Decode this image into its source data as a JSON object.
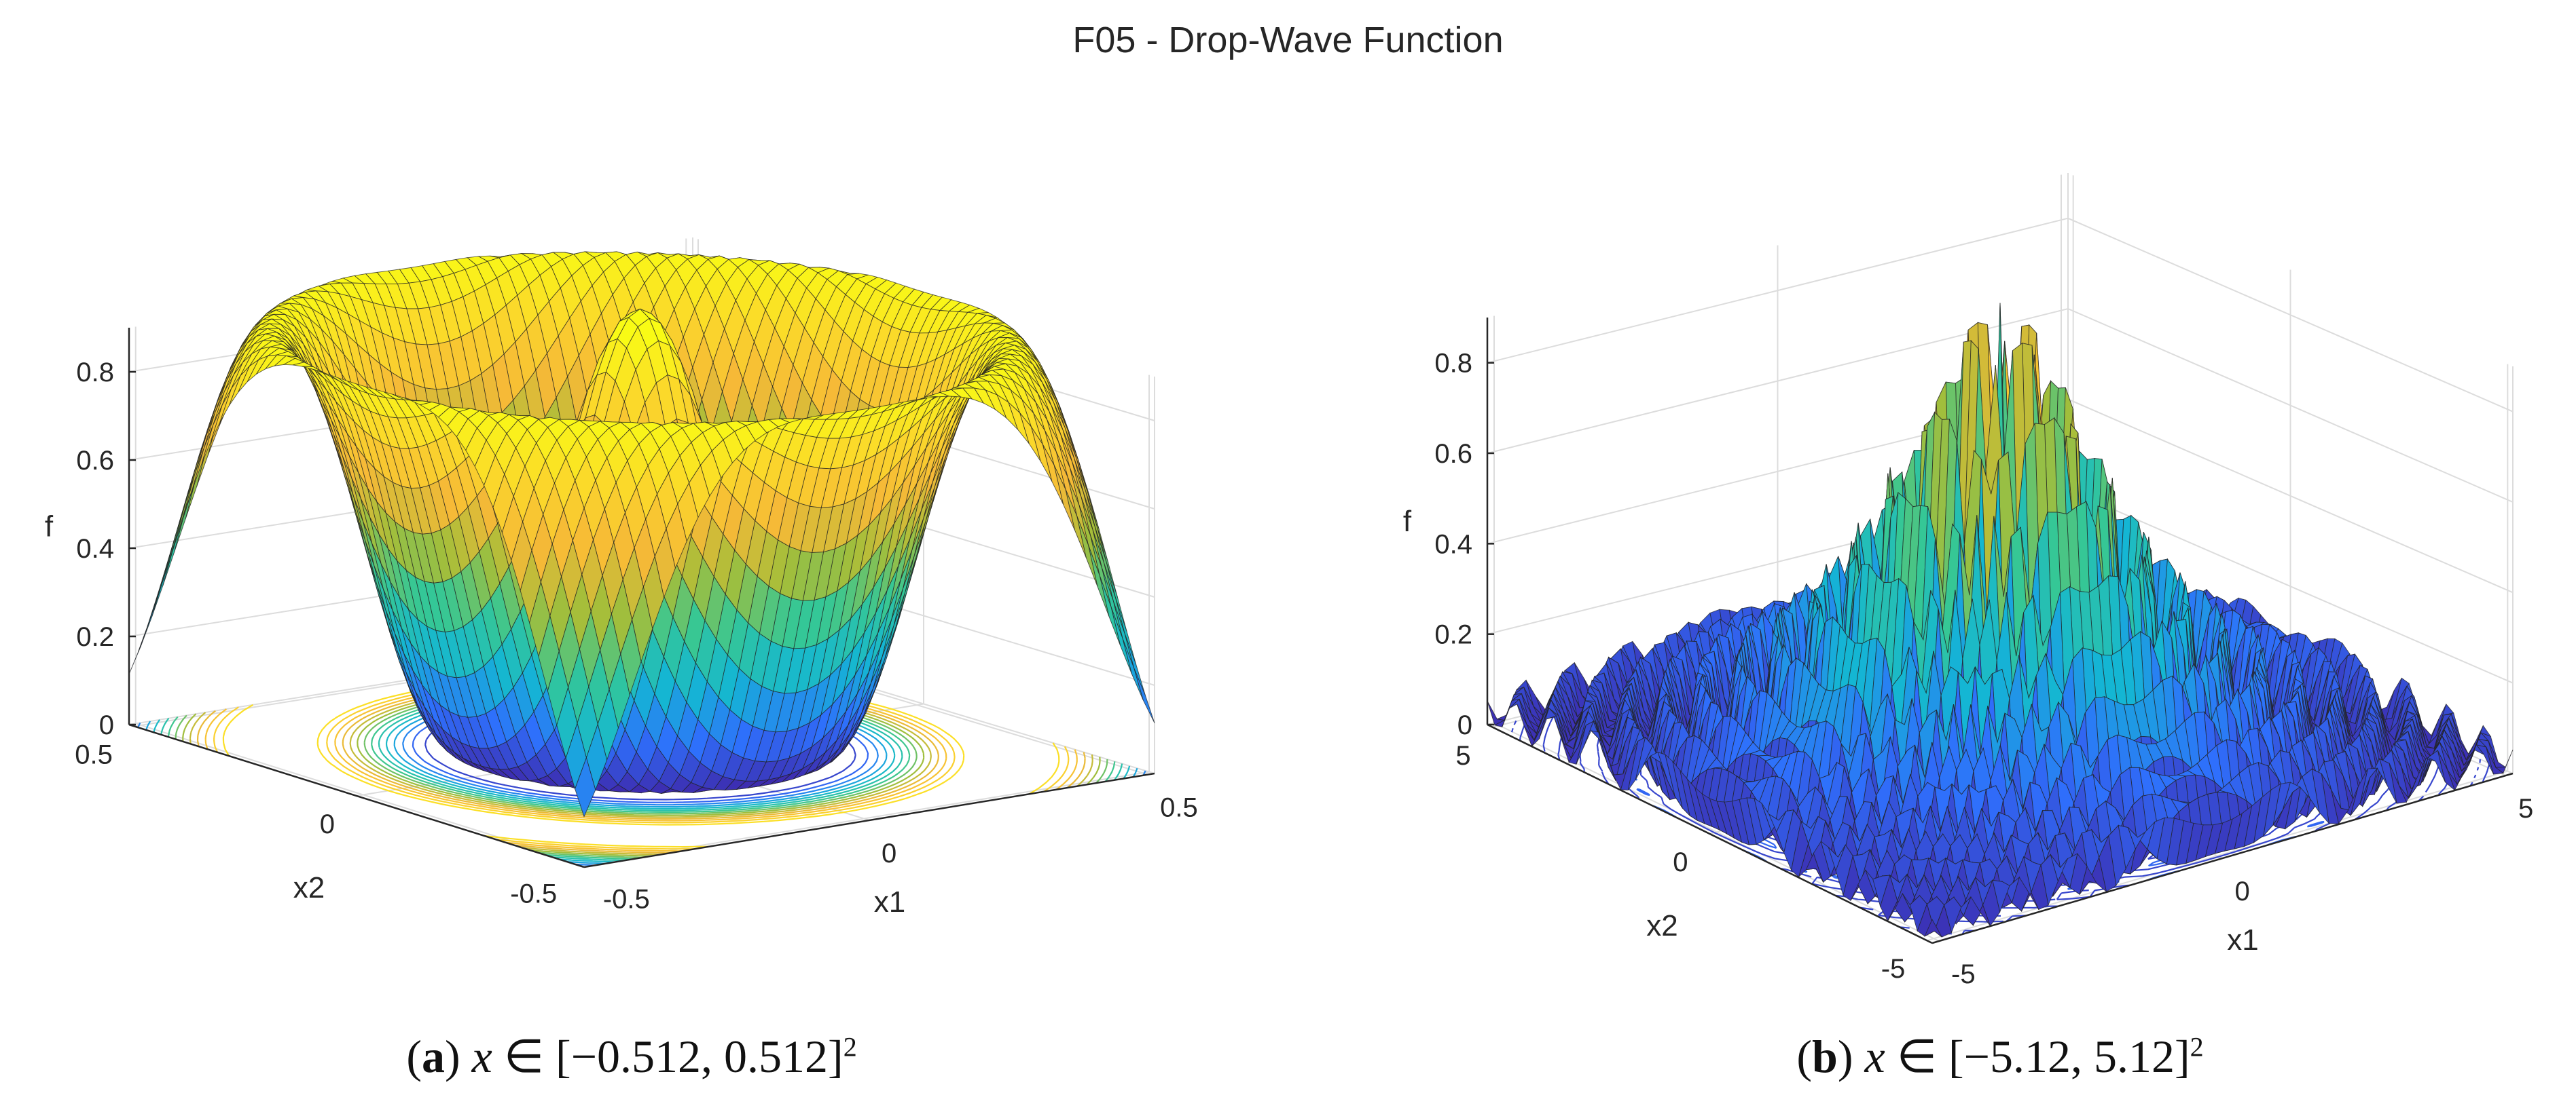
{
  "figure_title": "F05 - Drop-Wave Function",
  "chart_data": [
    {
      "type": "surface",
      "panel_label": "a",
      "caption_rest": "[−0.512, 0.512]",
      "caption_var": "x",
      "caption_sup": "2",
      "function": "drop-wave",
      "xlabel": "x1",
      "ylabel": "x2",
      "zlabel": "f",
      "xlim": [
        -0.512,
        0.512
      ],
      "ylim": [
        -0.512,
        0.512
      ],
      "zlim": [
        0,
        0.9
      ],
      "x_ticks": [
        "-0.5",
        "0",
        "0.5"
      ],
      "y_ticks": [
        "-0.5",
        "0",
        "0.5"
      ],
      "z_ticks": [
        "0",
        "0.2",
        "0.4",
        "0.6",
        "0.8"
      ],
      "colormap": [
        "#3e26a8",
        "#2f6ffc",
        "#14b6d4",
        "#35c796",
        "#a4be3a",
        "#f6b937",
        "#fbd92a",
        "#f9fb15"
      ],
      "contour_projection": true,
      "grid": true
    },
    {
      "type": "surface",
      "panel_label": "b",
      "caption_rest": "[−5.12, 5.12]",
      "caption_var": "x",
      "caption_sup": "2",
      "function": "drop-wave",
      "xlabel": "x1",
      "ylabel": "x2",
      "zlabel": "f",
      "xlim": [
        -5.12,
        5.12
      ],
      "ylim": [
        -5.12,
        5.12
      ],
      "zlim": [
        0,
        0.9
      ],
      "x_ticks": [
        "-5",
        "0",
        "5"
      ],
      "y_ticks": [
        "-5",
        "0",
        "5"
      ],
      "z_ticks": [
        "0",
        "0.2",
        "0.4",
        "0.6",
        "0.8"
      ],
      "colormap": [
        "#3e26a8",
        "#2f6ffc",
        "#14b6d4",
        "#35c796",
        "#a4be3a",
        "#f6b937",
        "#fbd92a",
        "#f9fb15"
      ],
      "contour_projection": true,
      "grid": true
    }
  ]
}
